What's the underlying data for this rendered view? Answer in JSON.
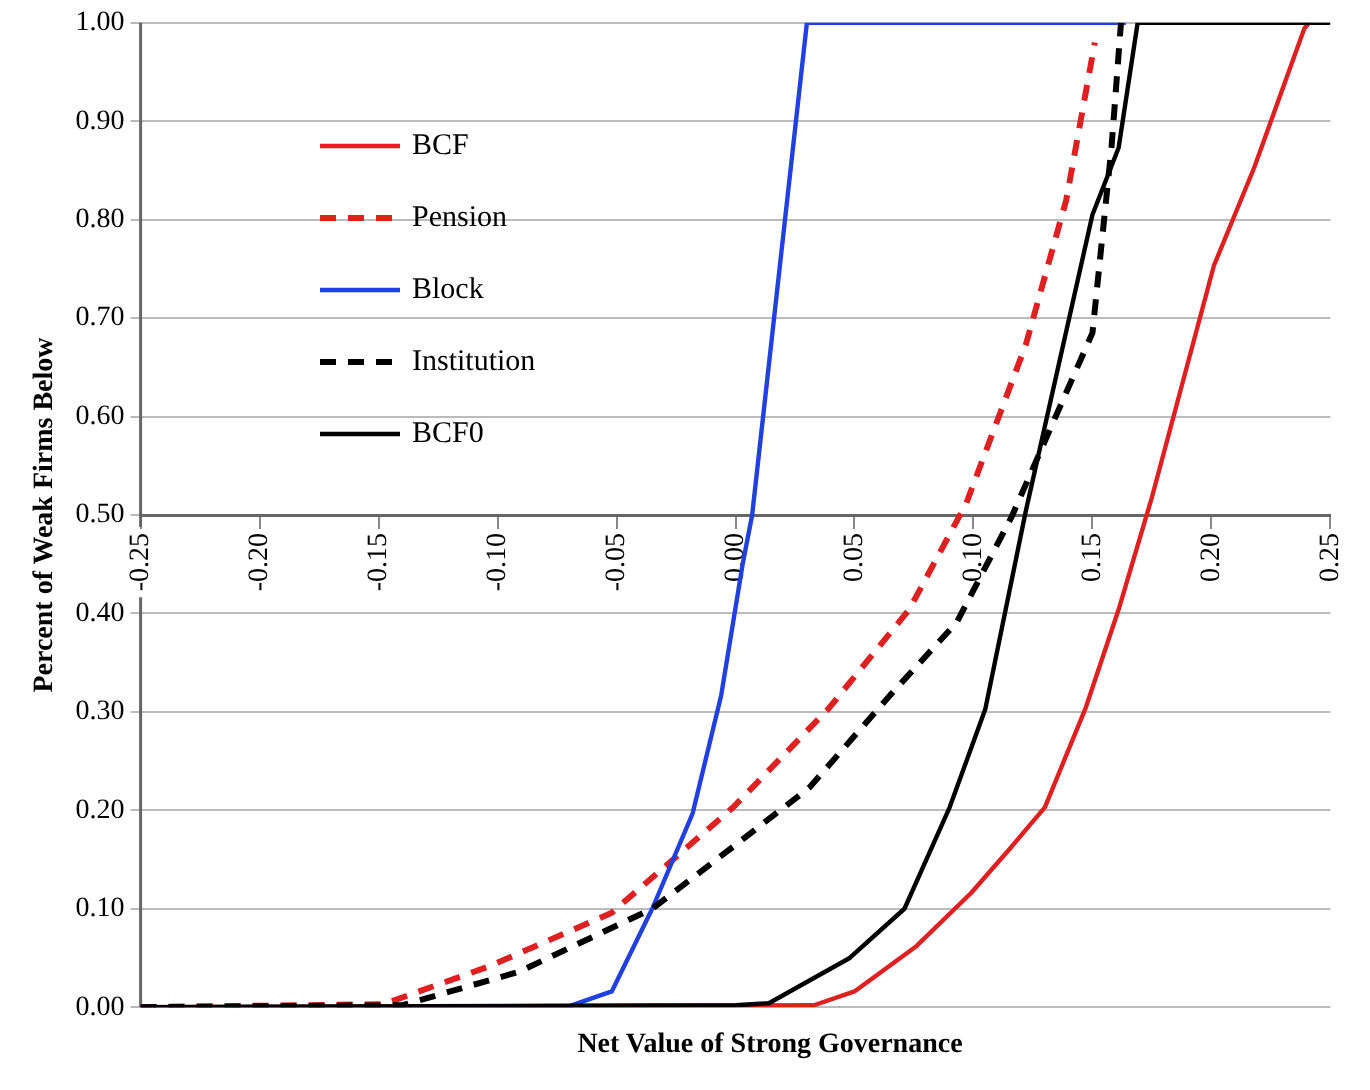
{
  "chart_data": {
    "type": "line",
    "xlabel": "Net Value of Strong Governance",
    "ylabel": "Percent of Weak Firms Below",
    "xlim": [
      -0.25,
      0.25
    ],
    "ylim": [
      0,
      1
    ],
    "xticks": [
      {
        "value": -0.25,
        "label": "-0.25"
      },
      {
        "value": -0.2,
        "label": "-0.20"
      },
      {
        "value": -0.15,
        "label": "-0.15"
      },
      {
        "value": -0.1,
        "label": "-0.10"
      },
      {
        "value": -0.05,
        "label": "-0.05"
      },
      {
        "value": 0,
        "label": "0.00"
      },
      {
        "value": 0.05,
        "label": "0.05"
      },
      {
        "value": 0.1,
        "label": "0.10"
      },
      {
        "value": 0.15,
        "label": "0.15"
      },
      {
        "value": 0.2,
        "label": "0.20"
      },
      {
        "value": 0.25,
        "label": "0.25"
      }
    ],
    "yticks": [
      {
        "value": 0,
        "label": "0.00"
      },
      {
        "value": 0.1,
        "label": "0.10"
      },
      {
        "value": 0.2,
        "label": "0.20"
      },
      {
        "value": 0.3,
        "label": "0.30"
      },
      {
        "value": 0.4,
        "label": "0.40"
      },
      {
        "value": 0.5,
        "label": "0.50"
      },
      {
        "value": 0.6,
        "label": "0.60"
      },
      {
        "value": 0.7,
        "label": "0.70"
      },
      {
        "value": 0.8,
        "label": "0.80"
      },
      {
        "value": 0.9,
        "label": "0.90"
      },
      {
        "value": 1,
        "label": "1.00"
      }
    ],
    "grid": "y",
    "legend": "top left",
    "marker": "none",
    "series": [
      {
        "name": "BCF",
        "color": "#e02020",
        "line_style": "solid",
        "x": [
          -0.25,
          0.033,
          0.05,
          0.076,
          0.099,
          0.116,
          0.13,
          0.147,
          0.161,
          0.175,
          0.201,
          0.218,
          0.239,
          0.241
        ],
        "values": [
          0,
          0.002,
          0.016,
          0.062,
          0.116,
          0.163,
          0.203,
          0.303,
          0.404,
          0.518,
          0.753,
          0.853,
          0.994,
          1
        ]
      },
      {
        "name": "Pension",
        "color": "#e02020",
        "line_style": "dashed",
        "x": [
          -0.25,
          -0.148,
          -0.103,
          -0.052,
          -0.001,
          0.039,
          0.073,
          0.097,
          0.122,
          0.139,
          0.151
        ],
        "values": [
          0,
          0.003,
          0.042,
          0.096,
          0.203,
          0.303,
          0.404,
          0.512,
          0.673,
          0.82,
          0.98
        ]
      },
      {
        "name": "Block",
        "color": "#2040e0",
        "line_style": "solid",
        "x": [
          -0.25,
          -0.071,
          -0.052,
          -0.035,
          -0.018,
          -0.006,
          0.003,
          0.007,
          0.03,
          0.164
        ],
        "values": [
          0,
          0,
          0.016,
          0.1,
          0.197,
          0.317,
          0.45,
          0.5,
          1,
          1
        ]
      },
      {
        "name": "Institution",
        "color": "#000000",
        "line_style": "dashed",
        "x": [
          -0.25,
          -0.14,
          -0.091,
          -0.035,
          -0.001,
          0.031,
          0.065,
          0.093,
          0.116,
          0.15,
          0.158,
          0.162
        ],
        "values": [
          0,
          0.002,
          0.036,
          0.1,
          0.163,
          0.223,
          0.317,
          0.391,
          0.498,
          0.685,
          0.873,
          1
        ]
      },
      {
        "name": "BCF0",
        "color": "#000000",
        "line_style": "solid",
        "x": [
          -0.25,
          0.0,
          0.014,
          0.048,
          0.071,
          0.09,
          0.105,
          0.122,
          0.15,
          0.161,
          0.169,
          0.25
        ],
        "values": [
          0,
          0.002,
          0.004,
          0.05,
          0.1,
          0.203,
          0.303,
          0.504,
          0.805,
          0.873,
          1,
          1
        ]
      }
    ]
  }
}
